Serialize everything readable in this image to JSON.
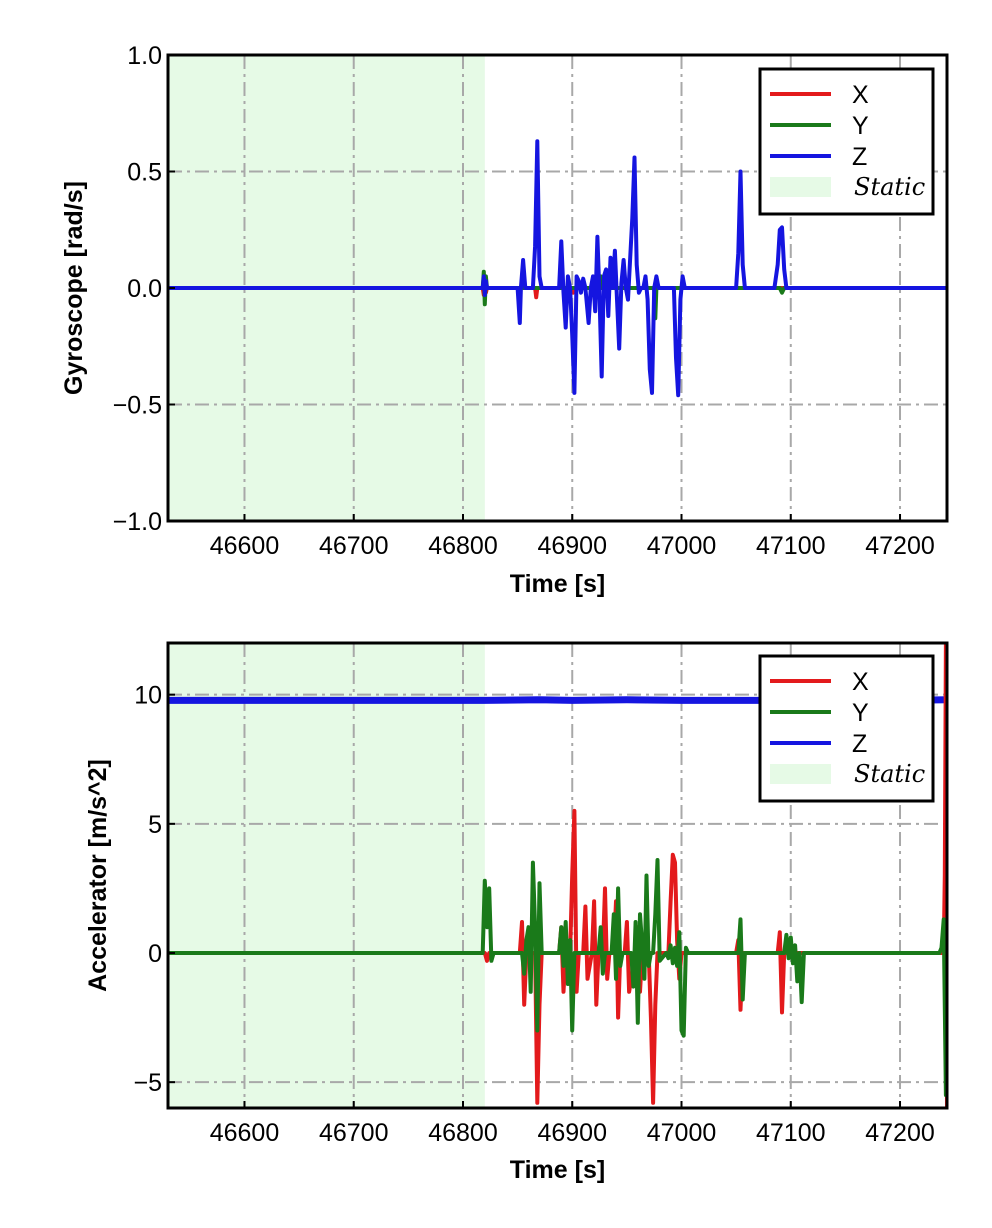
{
  "chart_data": [
    {
      "type": "line",
      "id": "gyro",
      "xlabel": "Time [s]",
      "ylabel": "Gyroscope [rad/s]",
      "xlim": [
        46530,
        47243
      ],
      "ylim": [
        -1.0,
        1.0
      ],
      "xticks": [
        46600,
        46700,
        46800,
        46900,
        47000,
        47100,
        47200
      ],
      "xtick_labels": [
        "46600",
        "46700",
        "46800",
        "46900",
        "47000",
        "47100",
        "47200"
      ],
      "yticks": [
        -1.0,
        -0.5,
        0.0,
        0.5,
        1.0
      ],
      "ytick_labels": [
        "−1.0",
        "−0.5",
        "0.0",
        "0.5",
        "1.0"
      ],
      "grid": true,
      "legend_position": "top-right",
      "static_region": {
        "label": "Static",
        "x": [
          46530,
          46820
        ],
        "color": "#e6fae6"
      },
      "series": [
        {
          "name": "X",
          "color": "#e31a1c",
          "x": [
            46530,
            46818,
            46819,
            46820,
            46821,
            46822,
            46866,
            46867,
            46868,
            46900,
            46901,
            46902,
            47243
          ],
          "y": [
            0.0,
            0.0,
            -0.03,
            0.04,
            -0.02,
            0.0,
            0.0,
            -0.04,
            0.0,
            0.0,
            -0.02,
            0.0,
            0.0
          ]
        },
        {
          "name": "Y",
          "color": "#1a7a1a",
          "x": [
            46530,
            46818,
            46819,
            46820,
            46821,
            46822,
            46925,
            46926,
            46927,
            46975,
            46976,
            46977,
            47090,
            47092,
            47094,
            47243
          ],
          "y": [
            0.0,
            0.0,
            0.07,
            -0.07,
            0.05,
            0.0,
            0.0,
            0.05,
            0.0,
            0.0,
            -0.13,
            0.0,
            0.0,
            -0.02,
            0.0,
            0.0
          ]
        },
        {
          "name": "Z",
          "color": "#1515e0",
          "x": [
            46530,
            46818,
            46819,
            46820,
            46821,
            46822,
            46850,
            46852,
            46853,
            46855,
            46857,
            46864,
            46866,
            46868,
            46870,
            46872,
            46888,
            46890,
            46892,
            46894,
            46896,
            46898,
            46900,
            46902,
            46904,
            46906,
            46908,
            46910,
            46912,
            46915,
            46917,
            46919,
            46921,
            46923,
            46925,
            46927,
            46929,
            46931,
            46933,
            46935,
            46937,
            46939,
            46941,
            46943,
            46945,
            46947,
            46949,
            46951,
            46953,
            46955,
            46957,
            46959,
            46961,
            46963,
            46965,
            46967,
            46969,
            46971,
            46973,
            46975,
            46977,
            46979,
            46981,
            46983,
            46993,
            46995,
            46997,
            46999,
            47001,
            47003,
            47050,
            47052,
            47054,
            47056,
            47058,
            47085,
            47088,
            47090,
            47092,
            47094,
            47096,
            47243
          ],
          "y": [
            0.0,
            0.0,
            0.05,
            -0.03,
            0.03,
            0.0,
            0.0,
            -0.15,
            0.0,
            0.12,
            0.0,
            0.0,
            0.18,
            0.63,
            0.05,
            0.0,
            0.0,
            0.2,
            -0.02,
            -0.17,
            0.05,
            0.0,
            -0.2,
            -0.45,
            0.05,
            0.03,
            -0.02,
            0.04,
            0.0,
            -0.15,
            0.0,
            0.05,
            -0.1,
            0.22,
            -0.05,
            -0.38,
            0.05,
            0.08,
            -0.12,
            0.13,
            0.0,
            0.16,
            -0.05,
            -0.26,
            0.02,
            0.12,
            0.0,
            -0.05,
            0.13,
            0.3,
            0.56,
            0.1,
            -0.02,
            0.0,
            0.0,
            0.05,
            -0.05,
            -0.35,
            -0.45,
            0.0,
            0.05,
            0.0,
            0.0,
            0.0,
            0.0,
            -0.3,
            -0.46,
            -0.05,
            0.05,
            0.0,
            0.0,
            0.15,
            0.5,
            0.1,
            0.0,
            0.0,
            0.1,
            0.25,
            0.26,
            0.08,
            0.0,
            0.0
          ]
        }
      ]
    },
    {
      "type": "line",
      "id": "accel",
      "xlabel": "Time [s]",
      "ylabel": "Accelerator [m/s^2]",
      "xlim": [
        46530,
        47243
      ],
      "ylim": [
        -6.0,
        12.0
      ],
      "xticks": [
        46600,
        46700,
        46800,
        46900,
        47000,
        47100,
        47200
      ],
      "xtick_labels": [
        "46600",
        "46700",
        "46800",
        "46900",
        "47000",
        "47100",
        "47200"
      ],
      "yticks": [
        -5,
        0,
        5,
        10
      ],
      "ytick_labels": [
        "−5",
        "0",
        "5",
        "10"
      ],
      "grid": true,
      "legend_position": "top-right",
      "static_region": {
        "label": "Static",
        "x": [
          46530,
          46820
        ],
        "color": "#e6fae6"
      },
      "series": [
        {
          "name": "X",
          "color": "#e31a1c",
          "x": [
            46530,
            46820,
            46822,
            46824,
            46852,
            46854,
            46856,
            46858,
            46864,
            46866,
            46868,
            46870,
            46872,
            46888,
            46890,
            46892,
            46894,
            46898,
            46900,
            46902,
            46904,
            46906,
            46910,
            46912,
            46914,
            46918,
            46920,
            46922,
            46924,
            46928,
            46930,
            46932,
            46934,
            46938,
            46940,
            46942,
            46944,
            46948,
            46950,
            46952,
            46958,
            46960,
            46962,
            46964,
            46970,
            46972,
            46974,
            46976,
            46978,
            46988,
            46990,
            46992,
            46994,
            46996,
            46998,
            47000,
            47050,
            47052,
            47054,
            47056,
            47088,
            47090,
            47092,
            47094,
            47240,
            47241,
            47242,
            47243
          ],
          "y": [
            0.0,
            0.0,
            -0.3,
            0.0,
            0.0,
            1.2,
            -2.0,
            0.0,
            0.0,
            0.0,
            -5.8,
            -2.0,
            0.0,
            0.0,
            1.0,
            -1.5,
            0.0,
            0.0,
            3.0,
            5.5,
            -1.5,
            0.0,
            0.0,
            1.8,
            -1.0,
            0.0,
            2.0,
            -2.0,
            0.0,
            0.0,
            2.5,
            -1.0,
            0.0,
            0.0,
            2.0,
            -2.5,
            0.0,
            0.0,
            1.2,
            -1.5,
            0.0,
            1.0,
            -1.5,
            0.0,
            0.0,
            -2.5,
            -5.8,
            -2.0,
            0.0,
            0.0,
            2.0,
            3.8,
            3.5,
            0.5,
            -1.0,
            0.0,
            0.0,
            0.5,
            -2.2,
            0.0,
            0.0,
            0.8,
            -2.3,
            0.0,
            0.0,
            3.0,
            12.0,
            -6.0
          ]
        },
        {
          "name": "Y",
          "color": "#1a7a1a",
          "x": [
            46530,
            46818,
            46820,
            46822,
            46824,
            46826,
            46828,
            46854,
            46856,
            46858,
            46860,
            46862,
            46864,
            46866,
            46868,
            46870,
            46872,
            46874,
            46888,
            46890,
            46892,
            46894,
            46896,
            46898,
            46900,
            46902,
            46904,
            46924,
            46926,
            46928,
            46930,
            46936,
            46938,
            46940,
            46942,
            46944,
            46946,
            46954,
            46956,
            46958,
            46960,
            46962,
            46964,
            46966,
            46968,
            46970,
            46972,
            46974,
            46976,
            46978,
            46980,
            46986,
            46988,
            46990,
            46992,
            46994,
            46996,
            46998,
            47000,
            47002,
            47004,
            47006,
            47052,
            47054,
            47056,
            47058,
            47094,
            47096,
            47098,
            47100,
            47102,
            47104,
            47106,
            47108,
            47110,
            47112,
            47236,
            47238,
            47240,
            47242,
            47243
          ],
          "y": [
            0.0,
            0.0,
            2.8,
            1.0,
            2.5,
            -0.3,
            0.0,
            0.0,
            -0.8,
            0.5,
            1.0,
            -1.5,
            3.5,
            1.0,
            -3.0,
            2.7,
            0.0,
            0.0,
            0.0,
            1.0,
            -0.5,
            1.2,
            -1.2,
            0.5,
            -3.0,
            0.0,
            0.0,
            0.0,
            1.0,
            -0.8,
            0.0,
            0.0,
            1.5,
            -1.0,
            2.5,
            -0.5,
            0.0,
            0.0,
            -1.3,
            1.2,
            -2.7,
            1.5,
            0.3,
            -1.0,
            3.0,
            -0.5,
            0.0,
            0.0,
            1.5,
            3.6,
            -0.3,
            0.0,
            -0.2,
            0.3,
            -0.4,
            0.2,
            -0.5,
            0.8,
            -3.0,
            -3.2,
            0.2,
            0.0,
            0.0,
            1.3,
            -1.8,
            0.0,
            0.0,
            0.7,
            -0.2,
            0.6,
            -0.4,
            0.3,
            -1.1,
            0.0,
            -1.9,
            0.0,
            0.0,
            0.2,
            1.3,
            -5.5,
            0.0
          ]
        },
        {
          "name": "Z",
          "color": "#1515e0",
          "x": [
            46530,
            46820,
            46870,
            46900,
            46950,
            47000,
            47100,
            47200,
            47243
          ],
          "y": [
            9.78,
            9.78,
            9.8,
            9.78,
            9.8,
            9.78,
            9.78,
            9.78,
            9.8
          ]
        }
      ]
    }
  ]
}
